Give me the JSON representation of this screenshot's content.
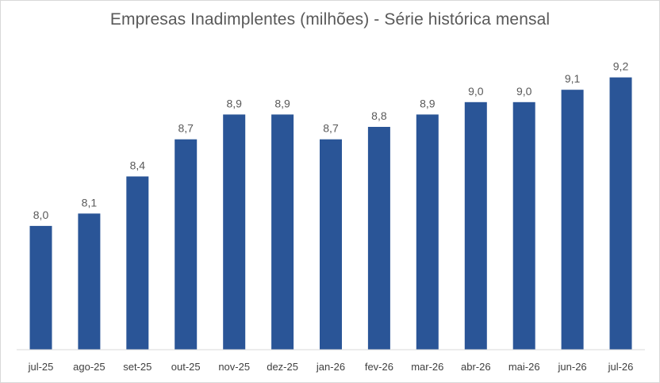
{
  "chart_data": {
    "type": "bar",
    "title": "Empresas Inadimplentes (milhões) - Série histórica mensal",
    "xlabel": "",
    "ylabel": "",
    "categories": [
      "jul-25",
      "ago-25",
      "set-25",
      "out-25",
      "nov-25",
      "dez-25",
      "jan-26",
      "fev-26",
      "mar-26",
      "abr-26",
      "mai-26",
      "jun-26",
      "jul-26"
    ],
    "values": [
      8.0,
      8.1,
      8.4,
      8.7,
      8.9,
      8.9,
      8.7,
      8.8,
      8.9,
      9.0,
      9.0,
      9.1,
      9.2
    ],
    "value_labels": [
      "8,0",
      "8,1",
      "8,4",
      "8,7",
      "8,9",
      "8,9",
      "8,7",
      "8,8",
      "8,9",
      "9,0",
      "9,0",
      "9,1",
      "9,2"
    ],
    "ylim": [
      7.0,
      9.3
    ],
    "grid": false,
    "legend": "none",
    "colors": {
      "bar": "#2a5597",
      "text": "#595959",
      "axis": "#d9d9d9"
    }
  }
}
